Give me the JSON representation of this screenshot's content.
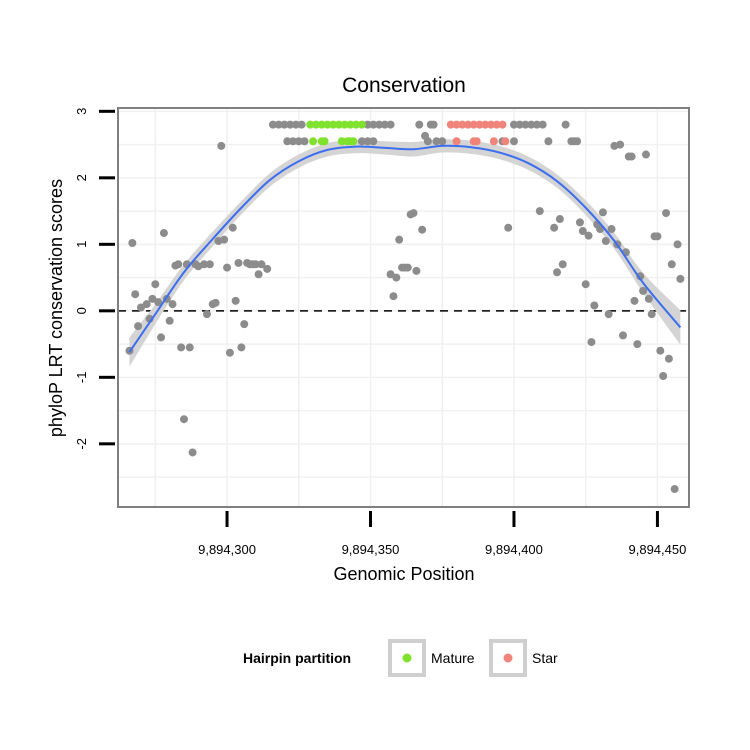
{
  "chart_data": {
    "type": "scatter",
    "title": "Conservation",
    "xlabel": "Genomic Position",
    "ylabel": "phyloP LRT conservation scores",
    "xlim": [
      9894262,
      9894461
    ],
    "ylim": [
      -2.95,
      3.05
    ],
    "x_ticks": [
      9894300,
      9894350,
      9894400,
      9894450
    ],
    "x_tick_labels": [
      "9,894,300",
      "9,894,350",
      "9,894,400",
      "9,894,450"
    ],
    "y_ticks": [
      -2,
      -1,
      0,
      1,
      2,
      3
    ],
    "y_tick_labels": [
      "-2",
      "-1",
      "0",
      "1",
      "2",
      "3"
    ],
    "reference_line": {
      "y": 0,
      "style": "dashed"
    },
    "colors": {
      "background": "#ffffff",
      "panel_border": "#7f7f7f",
      "grid": "#f0f0f0",
      "other": "#8c8c8c",
      "mature": "#7fe22c",
      "star": "#f0837a",
      "smooth_line": "#3d6ef0",
      "confidence_band": "#d4d4d4"
    },
    "legend": {
      "title": "Hairpin partition",
      "position": "bottom",
      "entries": [
        {
          "label": "Mature",
          "color": "#7fe22c"
        },
        {
          "label": "Star",
          "color": "#f0837a"
        }
      ]
    },
    "series": [
      {
        "name": "Other",
        "points": [
          [
            9894266,
            -0.6
          ],
          [
            9894267,
            1.02
          ],
          [
            9894268,
            0.25
          ],
          [
            9894269,
            -0.23
          ],
          [
            9894270,
            0.05
          ],
          [
            9894272,
            0.1
          ],
          [
            9894273,
            -0.12
          ],
          [
            9894274,
            0.18
          ],
          [
            9894275,
            0.4
          ],
          [
            9894276,
            0.13
          ],
          [
            9894277,
            -0.4
          ],
          [
            9894278,
            1.17
          ],
          [
            9894279,
            0.18
          ],
          [
            9894280,
            -0.15
          ],
          [
            9894281,
            0.1
          ],
          [
            9894282,
            0.68
          ],
          [
            9894283,
            0.7
          ],
          [
            9894284,
            -0.55
          ],
          [
            9894285,
            -1.63
          ],
          [
            9894286,
            0.7
          ],
          [
            9894287,
            -0.55
          ],
          [
            9894288,
            -2.13
          ],
          [
            9894289,
            0.7
          ],
          [
            9894290,
            0.67
          ],
          [
            9894292,
            0.7
          ],
          [
            9894293,
            -0.05
          ],
          [
            9894294,
            0.7
          ],
          [
            9894295,
            0.1
          ],
          [
            9894296,
            0.12
          ],
          [
            9894297,
            1.05
          ],
          [
            9894298,
            2.48
          ],
          [
            9894299,
            1.07
          ],
          [
            9894300,
            0.65
          ],
          [
            9894301,
            -0.63
          ],
          [
            9894302,
            1.25
          ],
          [
            9894303,
            0.15
          ],
          [
            9894304,
            0.72
          ],
          [
            9894305,
            -0.55
          ],
          [
            9894306,
            -0.2
          ],
          [
            9894307,
            0.72
          ],
          [
            9894308,
            0.7
          ],
          [
            9894309,
            0.7
          ],
          [
            9894310,
            0.7
          ],
          [
            9894311,
            0.55
          ],
          [
            9894312,
            0.7
          ],
          [
            9894314,
            0.63
          ],
          [
            9894316,
            2.8
          ],
          [
            9894318,
            2.8
          ],
          [
            9894320,
            2.8
          ],
          [
            9894322,
            2.8
          ],
          [
            9894324,
            2.8
          ],
          [
            9894326,
            2.8
          ],
          [
            9894321,
            2.55
          ],
          [
            9894323,
            2.55
          ],
          [
            9894325,
            2.55
          ],
          [
            9894327,
            2.55
          ],
          [
            9894347,
            2.55
          ],
          [
            9894349,
            2.55
          ],
          [
            9894351,
            2.55
          ],
          [
            9894349,
            2.8
          ],
          [
            9894351,
            2.8
          ],
          [
            9894353,
            2.8
          ],
          [
            9894355,
            2.8
          ],
          [
            9894357,
            2.8
          ],
          [
            9894357,
            0.55
          ],
          [
            9894358,
            0.22
          ],
          [
            9894359,
            0.5
          ],
          [
            9894360,
            1.07
          ],
          [
            9894361,
            0.65
          ],
          [
            9894362,
            0.65
          ],
          [
            9894363,
            0.65
          ],
          [
            9894364,
            1.45
          ],
          [
            9894365,
            1.47
          ],
          [
            9894366,
            0.6
          ],
          [
            9894367,
            2.8
          ],
          [
            9894368,
            1.22
          ],
          [
            9894369,
            2.63
          ],
          [
            9894370,
            2.55
          ],
          [
            9894371,
            2.8
          ],
          [
            9894372,
            2.8
          ],
          [
            9894373,
            2.55
          ],
          [
            9894375,
            2.55
          ],
          [
            9894396,
            2.55
          ],
          [
            9894398,
            1.25
          ],
          [
            9894400,
            2.55
          ],
          [
            9894402,
            2.8
          ],
          [
            9894400,
            2.8
          ],
          [
            9894404,
            2.8
          ],
          [
            9894406,
            2.8
          ],
          [
            9894408,
            2.8
          ],
          [
            9894410,
            2.8
          ],
          [
            9894409,
            1.5
          ],
          [
            9894412,
            2.55
          ],
          [
            9894414,
            1.25
          ],
          [
            9894415,
            0.58
          ],
          [
            9894416,
            1.38
          ],
          [
            9894417,
            0.7
          ],
          [
            9894418,
            2.8
          ],
          [
            9894420,
            2.55
          ],
          [
            9894421,
            2.55
          ],
          [
            9894422,
            2.55
          ],
          [
            9894423,
            1.33
          ],
          [
            9894424,
            1.2
          ],
          [
            9894425,
            0.4
          ],
          [
            9894426,
            1.13
          ],
          [
            9894427,
            -0.47
          ],
          [
            9894428,
            0.08
          ],
          [
            9894429,
            1.3
          ],
          [
            9894430,
            1.23
          ],
          [
            9894431,
            1.48
          ],
          [
            9894432,
            1.05
          ],
          [
            9894433,
            -0.05
          ],
          [
            9894434,
            1.23
          ],
          [
            9894435,
            2.48
          ],
          [
            9894436,
            1.0
          ],
          [
            9894437,
            2.5
          ],
          [
            9894438,
            -0.37
          ],
          [
            9894439,
            0.88
          ],
          [
            9894440,
            2.32
          ],
          [
            9894441,
            2.32
          ],
          [
            9894442,
            0.15
          ],
          [
            9894443,
            -0.5
          ],
          [
            9894444,
            0.52
          ],
          [
            9894445,
            0.3
          ],
          [
            9894446,
            2.35
          ],
          [
            9894447,
            0.18
          ],
          [
            9894448,
            -0.05
          ],
          [
            9894449,
            1.12
          ],
          [
            9894450,
            1.12
          ],
          [
            9894451,
            -0.6
          ],
          [
            9894452,
            -0.98
          ],
          [
            9894453,
            1.47
          ],
          [
            9894454,
            -0.72
          ],
          [
            9894455,
            0.7
          ],
          [
            9894456,
            -2.68
          ],
          [
            9894457,
            1.0
          ],
          [
            9894458,
            0.48
          ]
        ]
      },
      {
        "name": "Mature",
        "points": [
          [
            9894329,
            2.8
          ],
          [
            9894331,
            2.8
          ],
          [
            9894333,
            2.8
          ],
          [
            9894335,
            2.8
          ],
          [
            9894337,
            2.8
          ],
          [
            9894339,
            2.8
          ],
          [
            9894341,
            2.8
          ],
          [
            9894343,
            2.8
          ],
          [
            9894345,
            2.8
          ],
          [
            9894347,
            2.8
          ],
          [
            9894330,
            2.55
          ],
          [
            9894333,
            2.55
          ],
          [
            9894334,
            2.55
          ],
          [
            9894340,
            2.55
          ],
          [
            9894342,
            2.55
          ],
          [
            9894343,
            2.55
          ],
          [
            9894344,
            2.55
          ]
        ]
      },
      {
        "name": "Star",
        "points": [
          [
            9894378,
            2.8
          ],
          [
            9894380,
            2.8
          ],
          [
            9894382,
            2.8
          ],
          [
            9894384,
            2.8
          ],
          [
            9894386,
            2.8
          ],
          [
            9894388,
            2.8
          ],
          [
            9894390,
            2.8
          ],
          [
            9894392,
            2.8
          ],
          [
            9894394,
            2.8
          ],
          [
            9894396,
            2.8
          ],
          [
            9894380,
            2.55
          ],
          [
            9894386,
            2.55
          ],
          [
            9894387,
            2.55
          ],
          [
            9894393,
            2.55
          ],
          [
            9894397,
            2.55
          ]
        ]
      }
    ],
    "smooth": {
      "method": "loess",
      "x": [
        9894266,
        9894275,
        9894285,
        9894295,
        9894305,
        9894315,
        9894325,
        9894335,
        9894345,
        9894355,
        9894365,
        9894375,
        9894385,
        9894395,
        9894405,
        9894415,
        9894425,
        9894435,
        9894445,
        9894458
      ],
      "y": [
        -0.62,
        -0.05,
        0.58,
        1.08,
        1.55,
        1.97,
        2.25,
        2.42,
        2.47,
        2.45,
        2.43,
        2.48,
        2.46,
        2.38,
        2.22,
        1.95,
        1.55,
        1.05,
        0.42,
        -0.25
      ],
      "band": [
        0.22,
        0.15,
        0.12,
        0.11,
        0.1,
        0.1,
        0.1,
        0.1,
        0.1,
        0.1,
        0.11,
        0.1,
        0.1,
        0.1,
        0.1,
        0.1,
        0.11,
        0.12,
        0.15,
        0.26
      ]
    }
  }
}
